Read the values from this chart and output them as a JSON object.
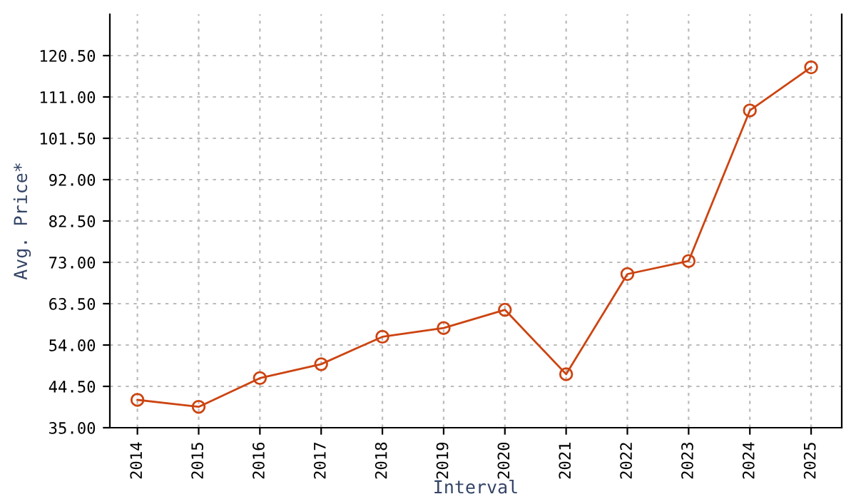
{
  "chart_data": {
    "type": "line",
    "xlabel": "Interval",
    "ylabel": "Avg. Price*",
    "categories": [
      "2014",
      "2015",
      "2016",
      "2017",
      "2018",
      "2019",
      "2020",
      "2021",
      "2022",
      "2023",
      "2024",
      "2025"
    ],
    "series": [
      {
        "color": "#cc4411",
        "values": [
          41.4,
          39.8,
          46.4,
          49.6,
          55.9,
          57.9,
          62.1,
          47.3,
          70.3,
          73.3,
          107.9,
          117.8
        ]
      }
    ],
    "ylim": [
      35,
      130
    ],
    "yticks": [
      {
        "value": 35,
        "label": "35.00"
      },
      {
        "value": 44.5,
        "label": "44.50"
      },
      {
        "value": 54,
        "label": "54.00"
      },
      {
        "value": 63.5,
        "label": "63.50"
      },
      {
        "value": 73,
        "label": "73.00"
      },
      {
        "value": 82.5,
        "label": "82.50"
      },
      {
        "value": 92,
        "label": "92.00"
      },
      {
        "value": 101.5,
        "label": "101.50"
      },
      {
        "value": 111,
        "label": "111.00"
      },
      {
        "value": 120.5,
        "label": "120.50"
      }
    ],
    "grid": true,
    "marker": "circle",
    "line_style": "solid"
  }
}
